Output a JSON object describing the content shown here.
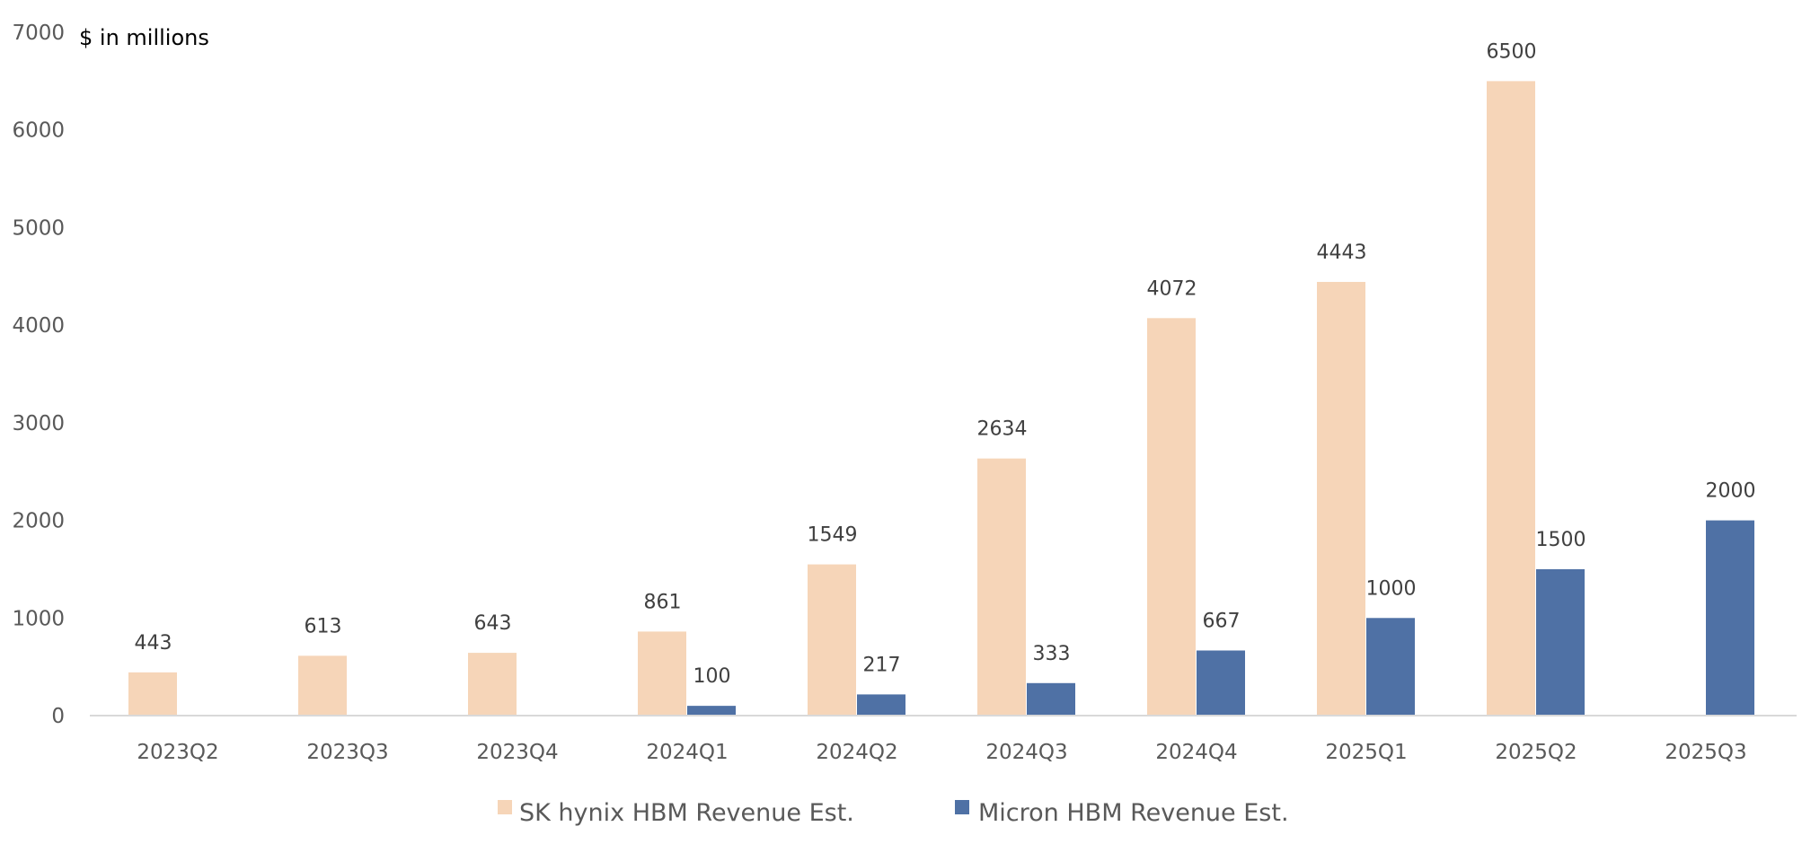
{
  "chart_data": {
    "type": "bar",
    "title": "",
    "unit_label": "$ in millions",
    "xlabel": "",
    "ylabel": "",
    "ylim": [
      0,
      7000
    ],
    "yticks": [
      0,
      1000,
      2000,
      3000,
      4000,
      5000,
      6000,
      7000
    ],
    "grid": false,
    "legend_position": "bottom",
    "categories": [
      "2023Q2",
      "2023Q3",
      "2023Q4",
      "2024Q1",
      "2024Q2",
      "2024Q3",
      "2024Q4",
      "2025Q1",
      "2025Q2",
      "2025Q3"
    ],
    "series": [
      {
        "name": "SK hynix HBM Revenue Est.",
        "color": "#F6D5B8",
        "values": [
          443,
          613,
          643,
          861,
          1549,
          2634,
          4072,
          4443,
          6500,
          null
        ]
      },
      {
        "name": "Micron HBM Revenue Est.",
        "color": "#4F71A5",
        "values": [
          null,
          null,
          null,
          100,
          217,
          333,
          667,
          1000,
          1500,
          2000
        ]
      }
    ]
  }
}
